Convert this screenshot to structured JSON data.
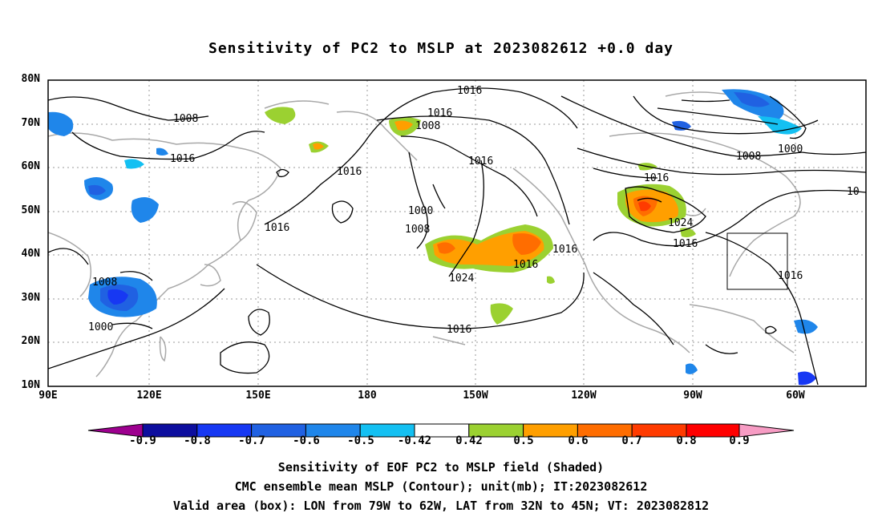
{
  "title": "Sensitivity of PC2 to MSLP at 2023082612 +0.0 day",
  "lat_labels": [
    "80N",
    "70N",
    "60N",
    "50N",
    "40N",
    "30N",
    "20N",
    "10N"
  ],
  "lon_labels": [
    "90E",
    "120E",
    "150E",
    "180",
    "150W",
    "120W",
    "90W",
    "60W"
  ],
  "contour_labels": [
    "1016",
    "1008",
    "1016",
    "1008",
    "1016",
    "1016",
    "1016",
    "1000",
    "1008",
    "1016",
    "1024",
    "1016",
    "1016",
    "1008",
    "1000",
    "1008",
    "1000",
    "1016",
    "1024",
    "1016",
    "1016",
    "10"
  ],
  "colorbar": {
    "labels": [
      "-0.9",
      "-0.8",
      "-0.7",
      "-0.6",
      "-0.5",
      "-0.42",
      "0.42",
      "0.5",
      "0.6",
      "0.7",
      "0.8",
      "0.9"
    ],
    "colors": [
      "#9d008f",
      "#0d0e9e",
      "#1738f3",
      "#2061e2",
      "#1f86ea",
      "#14c0f2",
      "#ffffff",
      "#9bd131",
      "#ff9f00",
      "#ff6d00",
      "#ff3b00",
      "#ff0000",
      "#f79cc4"
    ]
  },
  "valid_box": "LON from 79W to 62W, LAT from 32N to 45N",
  "captions": [
    "Sensitivity of EOF PC2 to MSLP field (Shaded)",
    "CMC ensemble mean MSLP (Contour); unit(mb); IT:2023082612",
    "Valid area (box): LON from 79W to 62W, LAT from 32N to 45N; VT: 2023082812"
  ]
}
